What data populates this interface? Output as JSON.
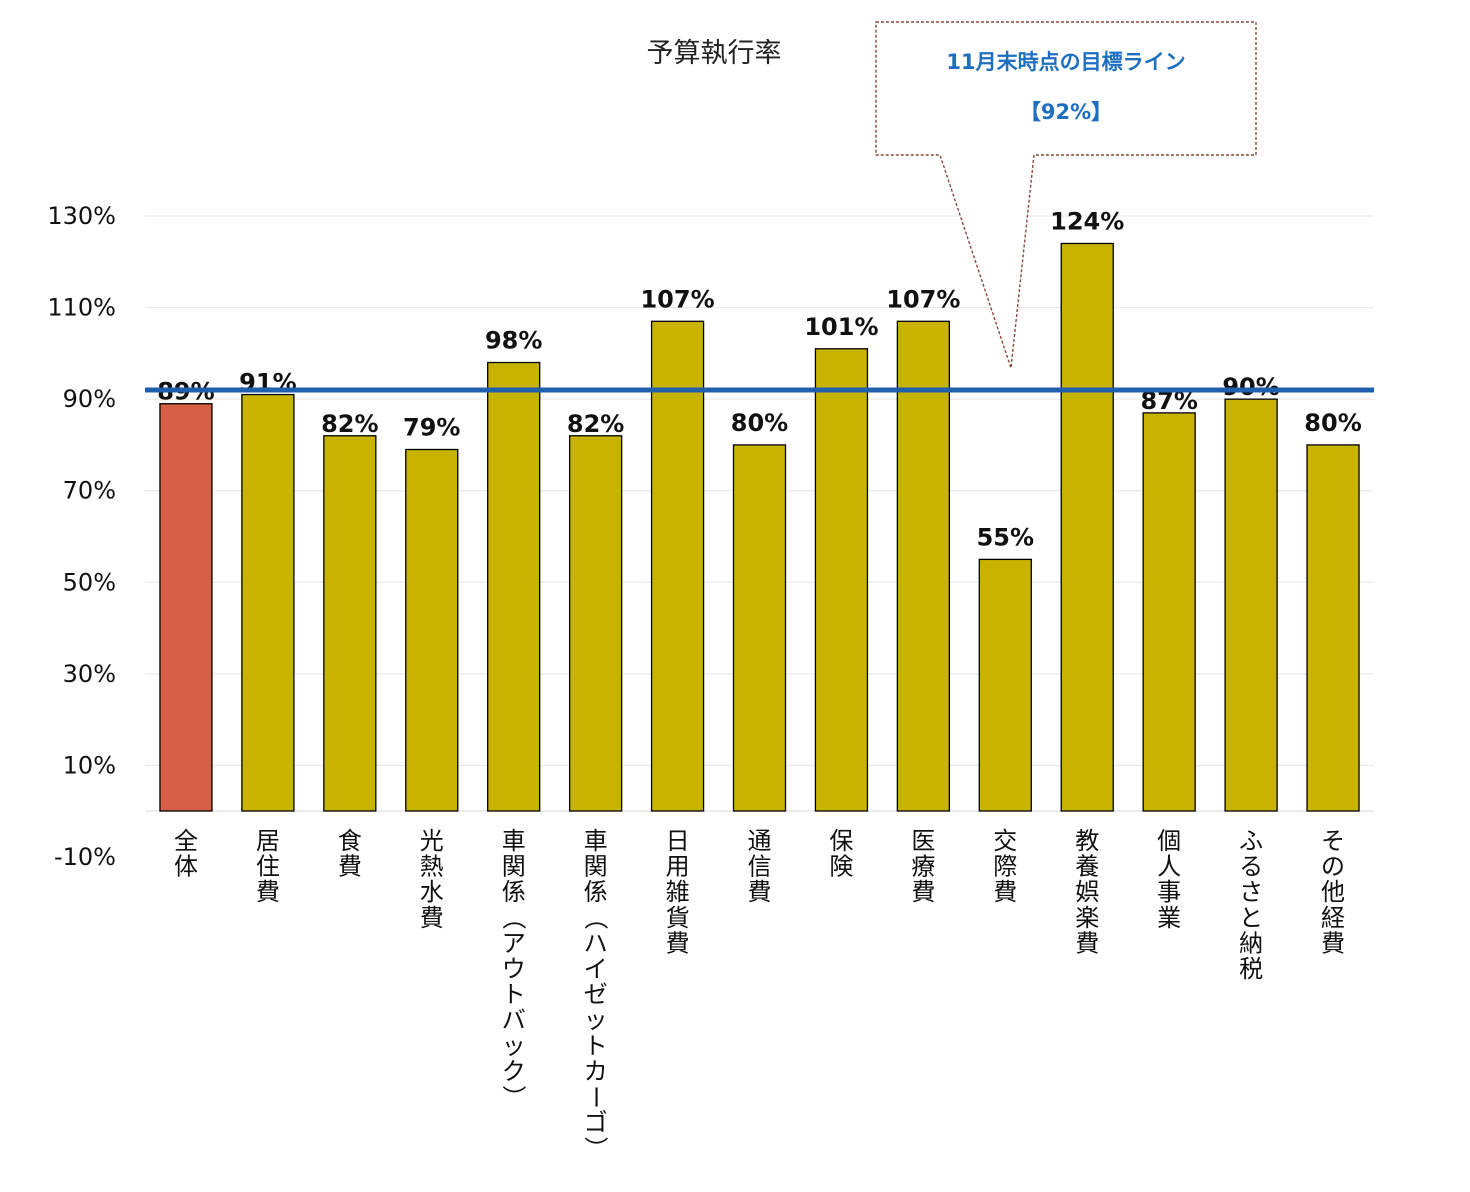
{
  "chart_data": {
    "type": "bar",
    "title": "予算執行率",
    "xlabel": "",
    "ylabel": "",
    "ylim": [
      -10,
      130
    ],
    "yticks": [
      "130%",
      "110%",
      "90%",
      "70%",
      "50%",
      "30%",
      "10%",
      "-10%"
    ],
    "ytick_values": [
      130,
      110,
      90,
      70,
      50,
      30,
      10,
      -10
    ],
    "categories": [
      "全体",
      "居住費",
      "食費",
      "光熱水費",
      "車関係（アウトバック）",
      "車関係（ハイゼットカーゴ）",
      "日用雑貨費",
      "通信費",
      "保険",
      "医療費",
      "交際費",
      "教養娯楽費",
      "個人事業",
      "ふるさと納税",
      "その他経費"
    ],
    "values": [
      89,
      91,
      82,
      79,
      98,
      82,
      107,
      80,
      101,
      107,
      55,
      124,
      87,
      90,
      80
    ],
    "data_labels": [
      "89%",
      "91%",
      "82%",
      "79%",
      "98%",
      "82%",
      "107%",
      "80%",
      "101%",
      "107%",
      "55%",
      "124%",
      "87%",
      "90%",
      "80%"
    ],
    "highlight_index": 0,
    "target_line": {
      "value": 92
    },
    "grid": true,
    "legend": "none",
    "annotation": {
      "line1": "11月末時点の目標ライン",
      "line2": "【92%】"
    },
    "colors": {
      "bar": "#C8B400",
      "highlight_bar": "#D65F48",
      "highlight_label": "#FF0000",
      "target_line": "#1F5FAE",
      "annotation_text": "#1F6FC0",
      "annotation_border": "#8B4A3C",
      "grid": "#E6E6E6"
    }
  }
}
